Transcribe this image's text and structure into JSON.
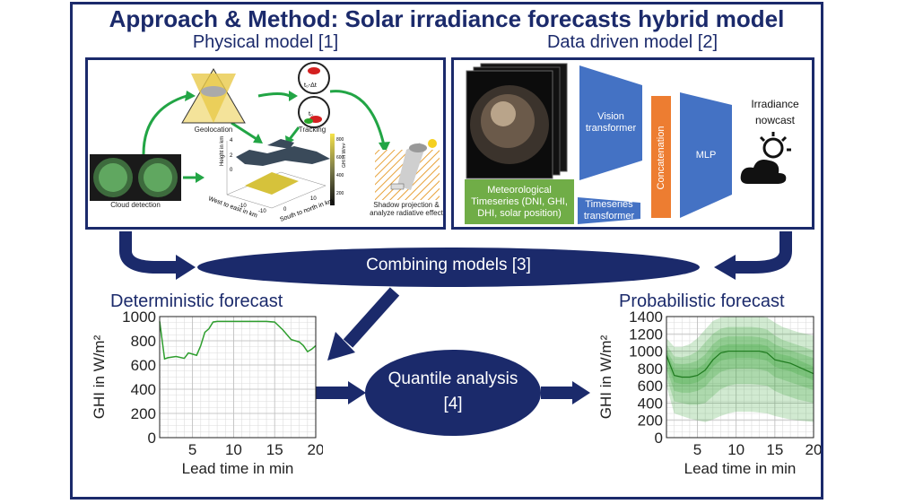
{
  "title": "Approach & Method: Solar irradiance forecasts hybrid model",
  "physical": {
    "heading": "Physical model [1]",
    "geolocation": "Geolocation",
    "tracking": "Tracking",
    "tracking_t1": "t₀-Δt",
    "tracking_t2": "t₀",
    "cloud_detection": "Cloud detection",
    "shadow": "Shadow projection &",
    "shadow2": "analyze radiative effect",
    "height_axis": "Height in km",
    "we_axis": "West to east in km",
    "sn_axis": "South to north in km",
    "ghi_axis": "GHI in W/m²",
    "tick_m10": "-10",
    "tick_0": "0",
    "tick_10": "10",
    "h_ticks": [
      "4",
      "2",
      "0"
    ],
    "c_ticks": [
      "800",
      "600",
      "400",
      "200"
    ]
  },
  "datadriven": {
    "heading": "Data driven model [2]",
    "vision": "Vision transformer",
    "timeseries_tf": "Timeseries transformer",
    "meteo": "Meteorological Timeseries (DNI, GHI, DHI, solar position)",
    "concat": "Concatenation",
    "mlp": "MLP",
    "nowcast": "Irradiance nowcast"
  },
  "combining": "Combining models [3]",
  "quantile": "Quantile analysis",
  "quantile_ref": "[4]",
  "deterministic": {
    "title": "Deterministic forecast",
    "chart_data": {
      "type": "line",
      "xlabel": "Lead time in min",
      "ylabel": "GHI in W/m²",
      "xlim": [
        1,
        20
      ],
      "ylim": [
        0,
        1000
      ],
      "xticks": [
        5,
        10,
        15,
        20
      ],
      "yticks": [
        0,
        200,
        400,
        600,
        800,
        1000
      ],
      "grid": true,
      "x": [
        1,
        1.6,
        2,
        3,
        4,
        4.5,
        5,
        5.5,
        6,
        6.5,
        7,
        7.5,
        8,
        9,
        10,
        11,
        12,
        13,
        14,
        15,
        16,
        17,
        18,
        18.5,
        19,
        19.5,
        20
      ],
      "y": [
        960,
        650,
        660,
        670,
        655,
        700,
        690,
        680,
        760,
        870,
        900,
        955,
        960,
        960,
        960,
        960,
        960,
        960,
        960,
        955,
        890,
        810,
        790,
        760,
        710,
        730,
        760
      ],
      "color": "#2e9e2e"
    }
  },
  "probabilistic": {
    "title": "Probabilistic forecast",
    "chart_data": {
      "type": "area",
      "xlabel": "Lead time in min",
      "ylabel": "GHI in W/m²",
      "xlim": [
        1,
        20
      ],
      "ylim": [
        0,
        1400
      ],
      "xticks": [
        5,
        10,
        15,
        20
      ],
      "yticks": [
        0,
        200,
        400,
        600,
        800,
        1000,
        1200,
        1400
      ],
      "grid": true,
      "x": [
        1,
        2,
        3,
        4,
        5,
        6,
        7,
        8,
        9,
        10,
        11,
        12,
        13,
        14,
        15,
        16,
        17,
        18,
        19,
        20
      ],
      "median": [
        950,
        720,
        700,
        700,
        720,
        780,
        900,
        980,
        1000,
        1000,
        1000,
        1000,
        1000,
        980,
        900,
        880,
        860,
        820,
        780,
        740
      ],
      "bands": [
        {
          "lower": [
            600,
            280,
            250,
            220,
            200,
            180,
            210,
            250,
            280,
            300,
            300,
            300,
            290,
            280,
            250,
            230,
            210,
            200,
            190,
            180
          ],
          "upper": [
            1150,
            1050,
            1050,
            1080,
            1150,
            1250,
            1350,
            1390,
            1400,
            1400,
            1400,
            1400,
            1400,
            1390,
            1330,
            1280,
            1250,
            1220,
            1200,
            1180
          ]
        },
        {
          "lower": [
            700,
            420,
            400,
            380,
            380,
            400,
            480,
            560,
            600,
            620,
            620,
            620,
            610,
            600,
            540,
            500,
            470,
            440,
            420,
            400
          ],
          "upper": [
            1080,
            940,
            930,
            950,
            1000,
            1100,
            1200,
            1260,
            1280,
            1280,
            1280,
            1280,
            1270,
            1250,
            1180,
            1130,
            1100,
            1070,
            1040,
            1010
          ]
        },
        {
          "lower": [
            800,
            540,
            520,
            520,
            540,
            590,
            690,
            760,
            790,
            800,
            800,
            800,
            790,
            770,
            700,
            670,
            640,
            610,
            580,
            550
          ],
          "upper": [
            1020,
            860,
            850,
            860,
            890,
            960,
            1080,
            1150,
            1170,
            1170,
            1170,
            1170,
            1160,
            1140,
            1080,
            1040,
            1010,
            980,
            950,
            920
          ]
        },
        {
          "lower": [
            880,
            640,
            620,
            620,
            640,
            700,
            820,
            890,
            910,
            920,
            920,
            920,
            910,
            890,
            820,
            790,
            770,
            730,
            700,
            660
          ],
          "upper": [
            990,
            790,
            780,
            780,
            800,
            860,
            980,
            1060,
            1080,
            1080,
            1080,
            1080,
            1080,
            1060,
            980,
            960,
            940,
            900,
            860,
            820
          ]
        }
      ],
      "color": "#2e9e2e"
    }
  },
  "colors": {
    "navy": "#1b2a6b",
    "blue_box": "#4472c4",
    "orange_box": "#ed7d31",
    "green_box": "#70ad47",
    "arrow_green": "#22a545"
  }
}
